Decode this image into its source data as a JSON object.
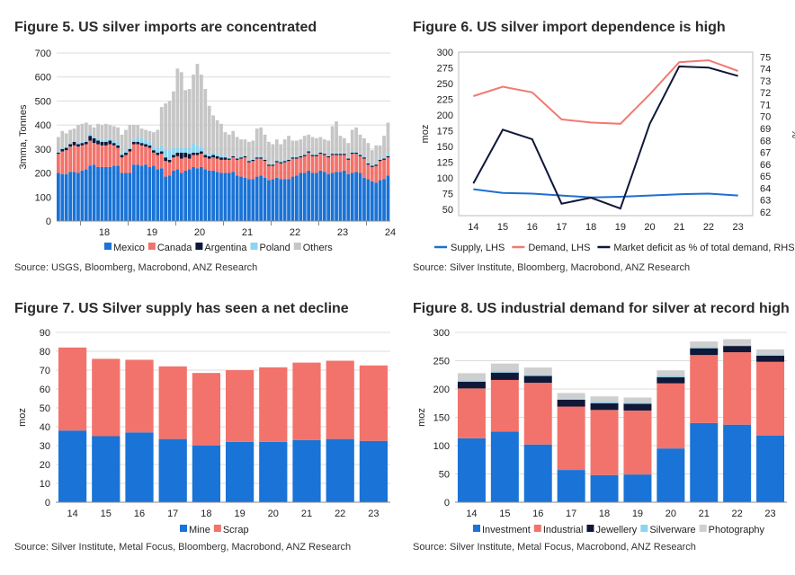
{
  "colors": {
    "blue": "#1a73d6",
    "red": "#f2736b",
    "navy": "#101838",
    "light_blue": "#8dd4f0",
    "gray": "#c6c6c6",
    "photo_gray": "#cfcfcf",
    "supply_line": "#1f6fd0",
    "demand_line": "#f07a72",
    "deficit_line": "#0f1838",
    "grid": "#dcdcdc"
  },
  "charts": [
    {
      "title": "Figure 5.  US silver imports are concentrated",
      "source": "Source: USGS, Bloomberg, Macrobond, ANZ Research",
      "chart_data": {
        "type": "bar",
        "stacked": true,
        "ylabel": "3mma, Tonnes",
        "ylim": [
          0,
          700
        ],
        "yticks": [
          "0",
          "100",
          "200",
          "300",
          "400",
          "500",
          "600",
          "700"
        ],
        "xtick_labels": [
          "18",
          "19",
          "20",
          "21",
          "22",
          "23",
          "24"
        ],
        "series": [
          {
            "name": "Mexico",
            "color": "#1a73d6",
            "values": [
              200,
              195,
              195,
              205,
              205,
              200,
              210,
              215,
              230,
              235,
              225,
              225,
              225,
              225,
              230,
              230,
              200,
              200,
              200,
              235,
              235,
              230,
              235,
              225,
              230,
              215,
              220,
              185,
              190,
              210,
              215,
              200,
              210,
              215,
              225,
              220,
              225,
              215,
              210,
              210,
              205,
              200,
              200,
              200,
              205,
              190,
              185,
              180,
              175,
              175,
              185,
              190,
              180,
              170,
              175,
              180,
              175,
              175,
              175,
              185,
              190,
              200,
              200,
              210,
              200,
              200,
              210,
              205,
              195,
              200,
              205,
              205,
              210,
              195,
              200,
              205,
              200,
              180,
              175,
              165,
              160,
              170,
              175,
              190
            ]
          },
          {
            "name": "Canada",
            "color": "#f2736b",
            "values": [
              80,
              95,
              100,
              105,
              110,
              110,
              105,
              105,
              105,
              90,
              95,
              90,
              90,
              95,
              85,
              75,
              65,
              75,
              90,
              85,
              85,
              85,
              75,
              80,
              55,
              60,
              60,
              65,
              55,
              55,
              55,
              60,
              55,
              45,
              50,
              55,
              55,
              50,
              50,
              55,
              55,
              55,
              55,
              55,
              60,
              65,
              75,
              85,
              70,
              75,
              75,
              70,
              70,
              60,
              55,
              65,
              65,
              70,
              75,
              75,
              70,
              65,
              70,
              75,
              70,
              70,
              70,
              70,
              70,
              75,
              70,
              70,
              65,
              60,
              80,
              75,
              70,
              80,
              60,
              60,
              70,
              80,
              80,
              75
            ]
          },
          {
            "name": "Argentina",
            "color": "#101838",
            "values": [
              5,
              10,
              10,
              10,
              15,
              10,
              10,
              10,
              20,
              20,
              15,
              15,
              15,
              15,
              10,
              10,
              10,
              10,
              10,
              10,
              10,
              10,
              10,
              10,
              10,
              10,
              10,
              15,
              10,
              10,
              15,
              25,
              20,
              20,
              10,
              10,
              10,
              10,
              10,
              10,
              10,
              10,
              10,
              5,
              5,
              5,
              5,
              5,
              5,
              5,
              5,
              5,
              5,
              5,
              5,
              5,
              5,
              5,
              5,
              5,
              5,
              5,
              5,
              5,
              5,
              5,
              5,
              5,
              5,
              5,
              5,
              5,
              5,
              5,
              5,
              5,
              5,
              5,
              5,
              5,
              5,
              5,
              5,
              5
            ]
          },
          {
            "name": "Poland",
            "color": "#8dd4f0",
            "values": [
              5,
              5,
              5,
              5,
              5,
              5,
              5,
              10,
              10,
              5,
              10,
              10,
              10,
              10,
              10,
              15,
              10,
              10,
              10,
              10,
              20,
              20,
              20,
              15,
              15,
              20,
              25,
              35,
              40,
              30,
              20,
              20,
              20,
              25,
              40,
              30,
              20,
              10,
              10,
              10,
              10,
              10,
              5,
              5,
              5,
              5,
              5,
              5,
              5,
              5,
              5,
              5,
              5,
              5,
              5,
              5,
              5,
              5,
              5,
              5,
              5,
              5,
              5,
              5,
              5,
              5,
              5,
              5,
              5,
              5,
              5,
              5,
              5,
              5,
              5,
              5,
              5,
              5,
              5,
              5,
              5,
              5,
              5,
              10
            ]
          },
          {
            "name": "Others",
            "color": "#c6c6c6",
            "values": [
              60,
              70,
              55,
              55,
              50,
              75,
              75,
              70,
              35,
              40,
              60,
              60,
              65,
              55,
              60,
              60,
              75,
              85,
              90,
              60,
              50,
              40,
              40,
              45,
              60,
              75,
              160,
              190,
              205,
              235,
              330,
              315,
              240,
              245,
              285,
              340,
              300,
              265,
              200,
              155,
              140,
              130,
              100,
              95,
              100,
              85,
              70,
              65,
              75,
              75,
              115,
              120,
              100,
              90,
              80,
              85,
              70,
              85,
              95,
              65,
              65,
              65,
              75,
              65,
              70,
              65,
              60,
              55,
              60,
              110,
              130,
              70,
              60,
              60,
              90,
              100,
              80,
              75,
              80,
              60,
              75,
              55,
              90,
              130
            ]
          }
        ]
      }
    },
    {
      "title": "Figure 6.  US silver import dependence is high",
      "source": "Source: Silver Institute, Bloomberg, Macrobond, ANZ Research",
      "chart_data": {
        "type": "line",
        "categories": [
          "14",
          "15",
          "16",
          "17",
          "18",
          "19",
          "20",
          "21",
          "22",
          "23"
        ],
        "ylabel": "moz",
        "ylim": [
          40,
          300
        ],
        "yticks": [
          "50",
          "75",
          "100",
          "125",
          "150",
          "175",
          "200",
          "225",
          "250",
          "275",
          "300"
        ],
        "ylabel_right": "%",
        "ylim_right": [
          61.7,
          75.4
        ],
        "yticks_right": [
          "62",
          "63",
          "64",
          "65",
          "66",
          "67",
          "68",
          "69",
          "70",
          "71",
          "72",
          "73",
          "74",
          "75"
        ],
        "series": [
          {
            "name": "Supply, LHS",
            "axis": "left",
            "color": "#1f6fd0",
            "values": [
              82,
              76,
              75,
              72,
              69,
              70,
              72,
              74,
              75,
              72
            ]
          },
          {
            "name": "Demand, LHS",
            "axis": "right_no",
            "color": "#f07a72",
            "values": [
              230,
              245,
              236,
              193,
              188,
              186,
              233,
              284,
              287,
              270
            ]
          },
          {
            "name": "Market deficit as % of total demand, RHS",
            "axis": "right",
            "color": "#0f1838",
            "values": [
              64.4,
              68.9,
              68.1,
              62.7,
              63.2,
              62.3,
              69.4,
              74.2,
              74.1,
              73.4
            ]
          }
        ]
      }
    },
    {
      "title": "Figure 7.  US Silver supply has seen a net decline",
      "source": "Source: Silver Institute, Metal Focus, Bloomberg, Macrobond, ANZ Research",
      "chart_data": {
        "type": "bar",
        "stacked": true,
        "categories": [
          "14",
          "15",
          "16",
          "17",
          "18",
          "19",
          "20",
          "21",
          "22",
          "23"
        ],
        "ylabel": "moz",
        "ylim": [
          0,
          90
        ],
        "yticks": [
          "0",
          "10",
          "20",
          "30",
          "40",
          "50",
          "60",
          "70",
          "80",
          "90"
        ],
        "series": [
          {
            "name": "Mine",
            "color": "#1a73d6",
            "values": [
              38,
              35,
              37,
              33.5,
              30,
              32,
              32,
              33,
              33.5,
              32.5
            ]
          },
          {
            "name": "Scrap",
            "color": "#f2736b",
            "values": [
              44,
              41,
              38.5,
              38.5,
              38.5,
              38,
              39.5,
              41,
              41.5,
              40
            ]
          }
        ]
      }
    },
    {
      "title": "Figure 8.  US industrial demand for silver at record high",
      "source": "Source: Silver Institute, Metal Focus, Macrobond, ANZ Research",
      "chart_data": {
        "type": "bar",
        "stacked": true,
        "categories": [
          "14",
          "15",
          "16",
          "17",
          "18",
          "19",
          "20",
          "21",
          "22",
          "23"
        ],
        "ylabel": "moz",
        "ylim": [
          0,
          300
        ],
        "yticks": [
          "0",
          "50",
          "100",
          "150",
          "200",
          "250",
          "300"
        ],
        "series": [
          {
            "name": "Investment",
            "color": "#1a73d6",
            "values": [
              113,
              125,
              102,
              57,
              48,
              49,
              95,
              140,
              137,
              118
            ]
          },
          {
            "name": "Industrial",
            "color": "#f2736b",
            "values": [
              88,
              91,
              109,
              112,
              115,
              113,
              115,
              120,
              128,
              130
            ]
          },
          {
            "name": "Jewellery",
            "color": "#101838",
            "values": [
              12,
              13,
              12,
              12,
              12,
              12,
              11,
              12,
              11,
              11
            ]
          },
          {
            "name": "Silverware",
            "color": "#8dd4f0",
            "values": [
              2,
              2,
              2,
              2,
              2,
              2,
              2,
              2,
              2,
              2
            ]
          },
          {
            "name": "Photography",
            "color": "#cfcfcf",
            "values": [
              13,
              14,
              13,
              10,
              10,
              9,
              10,
              10,
              10,
              9
            ]
          }
        ]
      }
    }
  ]
}
